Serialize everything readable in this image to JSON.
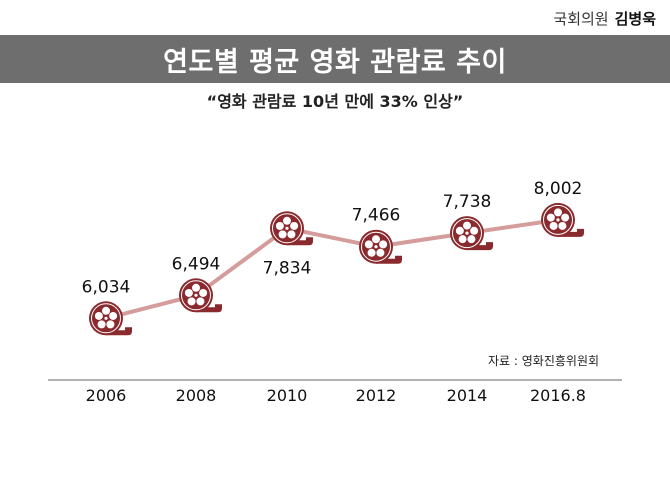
{
  "header": {
    "office": "국회의원",
    "name": "김병욱"
  },
  "title": "연도별 평균 영화 관람료 추이",
  "subtitle": "“영화 관람료 10년 만에 33% 인상”",
  "source": "자료 : 영화진흥위원회",
  "colors": {
    "title_bar": "#6e6e6e",
    "line": "#d49c9a",
    "reel": "#8a2a2e",
    "axis": "#999999"
  },
  "chart_data": {
    "type": "line",
    "categories": [
      "2006",
      "2008",
      "2010",
      "2012",
      "2014",
      "2016.8"
    ],
    "values": [
      6034,
      6494,
      7834,
      7466,
      7738,
      8002
    ],
    "data_labels": [
      "6,034",
      "6,494",
      "7,834",
      "7,466",
      "7,738",
      "8,002"
    ],
    "marker_icon": "film-reel-icon",
    "grid": false,
    "ylim": [
      5600,
      8300
    ]
  }
}
